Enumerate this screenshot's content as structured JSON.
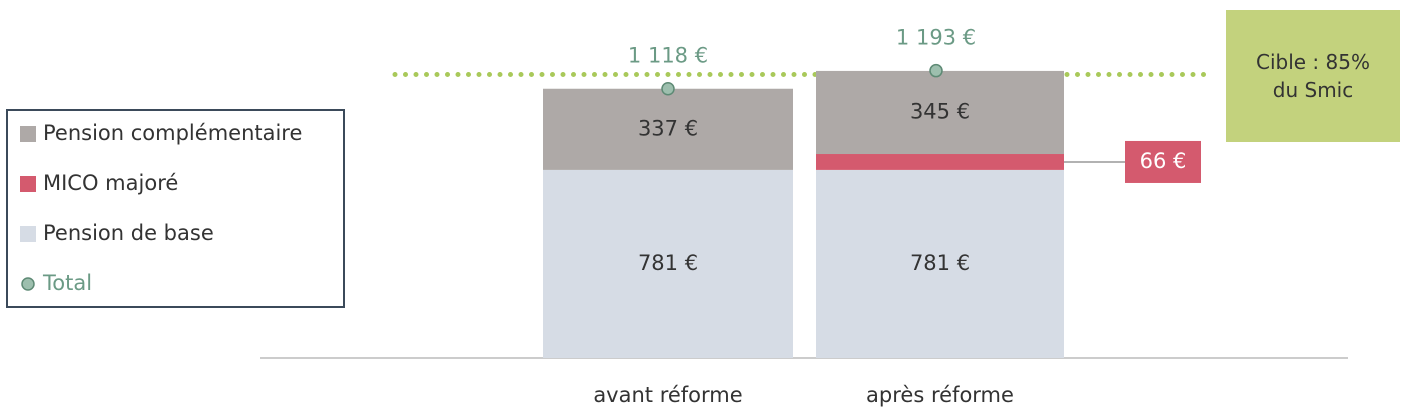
{
  "chart_data": {
    "type": "stacked_bar",
    "categories": [
      "avant réforme",
      "après réforme"
    ],
    "series": [
      {
        "name": "Pension complémentaire",
        "color": "#aea9a7",
        "values": [
          337,
          345
        ],
        "value_labels": [
          "337 €",
          "345 €"
        ]
      },
      {
        "name": "MICO majoré",
        "color": "#d45a6e",
        "values": [
          null,
          66
        ],
        "value_labels": [
          null,
          "66 €"
        ]
      },
      {
        "name": "Pension de base",
        "color": "#d6dce5",
        "values": [
          781,
          781
        ],
        "value_labels": [
          "781 €",
          "781 €"
        ]
      }
    ],
    "total": {
      "name": "Total",
      "color": "#9dbfae",
      "values": [
        1118,
        1193
      ],
      "value_labels": [
        "1 118 €",
        "1 193 €"
      ]
    },
    "target": {
      "label": "Cible : 85% du Smic",
      "value": 1177,
      "color": "#a9c95a"
    },
    "ylim": [
      0,
      1200
    ]
  }
}
